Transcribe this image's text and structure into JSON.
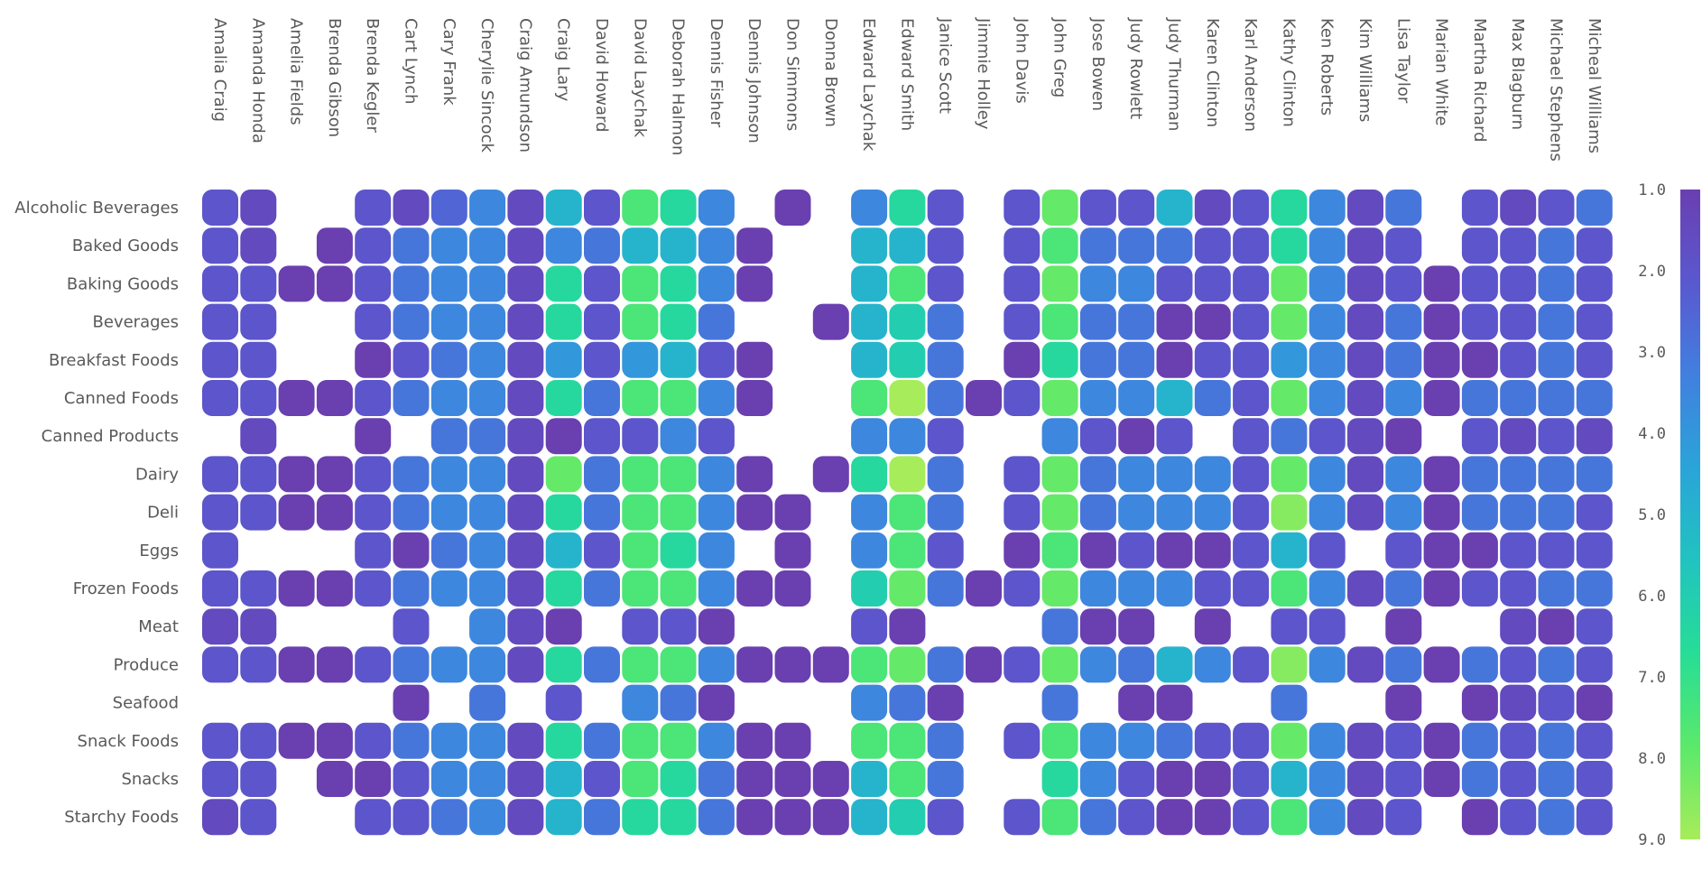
{
  "chart_data": {
    "type": "heatmap",
    "title": "",
    "xlabel": "",
    "ylabel": "",
    "columns": [
      "Amalia Craig",
      "Amanda Honda",
      "Amelia Fields",
      "Brenda Gibson",
      "Brenda Kegler",
      "Cart Lynch",
      "Cary Frank",
      "Cherylie Sincock",
      "Craig Amundson",
      "Craig Lary",
      "David Howard",
      "David Laychak",
      "Deborah Halmon",
      "Dennis Fisher",
      "Dennis Johnson",
      "Don Simmons",
      "Donna Brown",
      "Edward Laychak",
      "Edward Smith",
      "Janice Scott",
      "Jimmie Holley",
      "John Davis",
      "John Greg",
      "Jose Bowen",
      "Judy Rowlett",
      "Judy Thurman",
      "Karen Clinton",
      "Karl Anderson",
      "Kathy Clinton",
      "Ken Roberts",
      "Kim Williams",
      "Lisa Taylor",
      "Marian White",
      "Martha Richard",
      "Max Blagburn",
      "Michael Stephens",
      "Micheal Williams"
    ],
    "rows": [
      "Alcoholic Beverages",
      "Baked Goods",
      "Baking Goods",
      "Beverages",
      "Breakfast Foods",
      "Canned Foods",
      "Canned Products",
      "Dairy",
      "Deli",
      "Eggs",
      "Frozen Foods",
      "Meat",
      "Produce",
      "Seafood",
      "Snack Foods",
      "Snacks",
      "Starchy Foods"
    ],
    "values": [
      [
        2.0,
        1.5,
        null,
        null,
        2.0,
        1.5,
        2.5,
        3.5,
        1.5,
        5.0,
        2.0,
        7.5,
        6.5,
        3.5,
        null,
        1.0,
        null,
        3.5,
        6.5,
        2.0,
        null,
        2.0,
        8.0,
        2.0,
        2.0,
        5.0,
        1.5,
        2.0,
        6.5,
        3.5,
        1.5,
        3.0,
        null,
        2.0,
        1.5,
        2.0,
        3.0
      ],
      [
        2.0,
        1.5,
        null,
        1.0,
        2.0,
        3.0,
        3.5,
        3.5,
        1.5,
        3.5,
        3.0,
        5.0,
        5.0,
        3.5,
        1.0,
        null,
        null,
        5.0,
        5.0,
        2.0,
        null,
        2.0,
        7.5,
        3.0,
        3.0,
        3.0,
        2.0,
        2.0,
        6.5,
        3.5,
        1.5,
        2.0,
        null,
        2.0,
        2.0,
        3.0,
        2.0
      ],
      [
        2.0,
        2.0,
        1.0,
        1.0,
        2.0,
        3.0,
        3.5,
        3.5,
        1.5,
        6.5,
        2.0,
        7.5,
        6.5,
        3.5,
        1.0,
        null,
        null,
        5.0,
        7.5,
        2.0,
        null,
        2.0,
        8.0,
        3.5,
        3.5,
        2.0,
        2.0,
        2.0,
        8.0,
        3.5,
        1.5,
        2.0,
        1.0,
        2.0,
        2.0,
        3.0,
        2.0
      ],
      [
        2.0,
        2.0,
        null,
        null,
        2.0,
        3.0,
        3.5,
        3.5,
        1.5,
        6.5,
        2.0,
        7.5,
        6.5,
        3.0,
        null,
        null,
        1.0,
        5.0,
        6.0,
        3.0,
        null,
        2.0,
        7.5,
        3.0,
        3.0,
        1.0,
        1.0,
        2.0,
        8.0,
        3.5,
        1.5,
        3.0,
        1.0,
        2.0,
        2.0,
        3.0,
        2.0
      ],
      [
        2.0,
        2.0,
        null,
        null,
        1.0,
        2.0,
        3.0,
        3.5,
        1.5,
        4.0,
        2.0,
        4.0,
        5.0,
        2.0,
        1.0,
        null,
        null,
        5.0,
        6.0,
        3.0,
        null,
        1.0,
        6.5,
        3.0,
        3.0,
        1.0,
        2.0,
        2.0,
        4.0,
        3.5,
        1.5,
        3.0,
        1.0,
        1.0,
        2.0,
        3.0,
        2.0
      ],
      [
        2.0,
        2.0,
        1.0,
        1.0,
        2.0,
        3.0,
        3.5,
        3.5,
        1.5,
        6.5,
        3.0,
        7.5,
        7.5,
        3.5,
        1.0,
        null,
        null,
        7.5,
        9.0,
        3.0,
        1.0,
        2.0,
        8.0,
        3.5,
        3.5,
        5.0,
        3.0,
        2.0,
        8.0,
        3.5,
        1.5,
        3.5,
        1.0,
        3.0,
        3.0,
        3.0,
        3.0
      ],
      [
        null,
        1.5,
        null,
        null,
        1.0,
        null,
        3.0,
        3.0,
        1.5,
        1.0,
        2.0,
        2.0,
        3.5,
        2.0,
        null,
        null,
        null,
        3.5,
        3.5,
        2.0,
        null,
        null,
        3.5,
        2.0,
        1.0,
        2.0,
        null,
        2.0,
        3.0,
        2.0,
        1.5,
        1.0,
        null,
        2.0,
        1.5,
        2.0,
        1.5
      ],
      [
        2.0,
        2.0,
        1.0,
        1.0,
        2.0,
        3.0,
        3.5,
        3.5,
        1.5,
        8.0,
        3.0,
        7.5,
        7.5,
        3.5,
        1.0,
        null,
        1.0,
        6.5,
        9.0,
        3.0,
        null,
        2.0,
        8.0,
        3.0,
        3.5,
        3.5,
        3.5,
        2.0,
        8.0,
        3.5,
        1.5,
        3.5,
        1.0,
        3.0,
        3.0,
        3.0,
        3.0
      ],
      [
        2.0,
        2.0,
        1.0,
        1.0,
        2.0,
        3.0,
        3.5,
        3.5,
        1.5,
        6.5,
        3.0,
        7.5,
        7.5,
        3.5,
        1.0,
        1.0,
        null,
        3.5,
        7.5,
        3.0,
        null,
        2.0,
        8.0,
        3.0,
        3.5,
        3.5,
        3.5,
        2.0,
        8.5,
        3.5,
        1.5,
        3.5,
        1.0,
        3.0,
        3.0,
        3.0,
        2.0
      ],
      [
        2.0,
        null,
        null,
        null,
        2.0,
        1.0,
        3.0,
        3.5,
        1.5,
        5.0,
        2.0,
        7.5,
        6.5,
        3.5,
        null,
        1.0,
        null,
        3.5,
        7.5,
        2.0,
        null,
        1.0,
        7.5,
        1.0,
        2.0,
        1.0,
        1.0,
        2.0,
        5.0,
        2.0,
        null,
        2.0,
        1.0,
        1.0,
        2.0,
        2.0,
        2.0
      ],
      [
        2.0,
        2.0,
        1.0,
        1.0,
        2.0,
        3.0,
        3.5,
        3.5,
        1.5,
        6.5,
        3.0,
        7.5,
        7.5,
        3.5,
        1.0,
        1.0,
        null,
        6.0,
        8.0,
        3.0,
        1.0,
        2.0,
        8.0,
        3.5,
        3.5,
        3.5,
        2.0,
        2.0,
        7.5,
        3.5,
        1.5,
        3.0,
        1.0,
        2.0,
        2.0,
        3.0,
        3.0
      ],
      [
        1.5,
        1.5,
        null,
        null,
        null,
        2.0,
        null,
        3.5,
        1.5,
        1.0,
        null,
        2.0,
        2.0,
        1.0,
        null,
        null,
        null,
        2.0,
        1.0,
        null,
        null,
        null,
        3.0,
        1.0,
        1.0,
        null,
        1.0,
        null,
        2.0,
        2.0,
        null,
        1.0,
        null,
        null,
        1.5,
        1.0,
        2.0
      ],
      [
        2.0,
        2.0,
        1.0,
        1.0,
        2.0,
        3.0,
        3.5,
        3.5,
        1.5,
        6.5,
        3.0,
        7.5,
        7.5,
        3.5,
        1.0,
        1.0,
        1.0,
        7.5,
        8.0,
        3.0,
        1.0,
        2.0,
        8.0,
        3.5,
        3.0,
        5.0,
        3.5,
        2.0,
        8.5,
        3.5,
        1.5,
        3.0,
        1.0,
        3.0,
        2.0,
        3.0,
        2.0
      ],
      [
        null,
        null,
        null,
        null,
        null,
        1.0,
        null,
        3.0,
        null,
        2.0,
        null,
        3.5,
        3.0,
        1.0,
        null,
        null,
        null,
        3.5,
        3.0,
        1.0,
        null,
        null,
        3.0,
        null,
        1.0,
        1.0,
        null,
        null,
        3.0,
        null,
        null,
        1.0,
        null,
        1.0,
        1.5,
        2.0,
        1.0
      ],
      [
        2.0,
        2.0,
        1.0,
        1.0,
        2.0,
        3.0,
        3.5,
        3.5,
        1.5,
        6.5,
        3.0,
        7.5,
        7.5,
        3.5,
        1.0,
        1.0,
        null,
        7.5,
        7.5,
        3.0,
        null,
        2.0,
        7.5,
        3.5,
        3.5,
        3.0,
        2.0,
        2.0,
        8.0,
        3.5,
        1.5,
        2.0,
        1.0,
        3.0,
        2.0,
        3.0,
        2.0
      ],
      [
        2.0,
        2.0,
        null,
        1.0,
        1.0,
        2.0,
        3.5,
        3.5,
        1.5,
        5.0,
        2.0,
        7.5,
        6.5,
        3.0,
        1.0,
        1.0,
        1.0,
        5.0,
        7.5,
        3.0,
        null,
        null,
        6.5,
        3.5,
        2.0,
        1.0,
        1.0,
        2.0,
        5.0,
        3.5,
        1.5,
        2.0,
        1.0,
        3.0,
        2.0,
        3.0,
        2.0
      ],
      [
        1.5,
        2.0,
        null,
        null,
        2.0,
        2.0,
        3.0,
        3.5,
        1.5,
        5.0,
        3.0,
        6.5,
        6.5,
        3.0,
        1.0,
        1.0,
        1.0,
        5.0,
        6.0,
        2.0,
        null,
        2.0,
        7.5,
        3.0,
        2.0,
        1.0,
        1.0,
        2.0,
        7.5,
        3.5,
        1.5,
        2.0,
        null,
        1.0,
        2.0,
        3.0,
        2.0
      ]
    ],
    "legend": {
      "ticks": [
        "1.0",
        "2.0",
        "3.0",
        "4.0",
        "5.0",
        "6.0",
        "7.0",
        "8.0",
        "9.0"
      ],
      "min": 1.0,
      "max": 9.0,
      "placement": "right"
    },
    "colors": {
      "stops": [
        "#6a3fb0",
        "#5a58cf",
        "#4180df",
        "#2aa4d8",
        "#21c3c0",
        "#27dd96",
        "#5be96b",
        "#a7ec5a"
      ]
    }
  }
}
